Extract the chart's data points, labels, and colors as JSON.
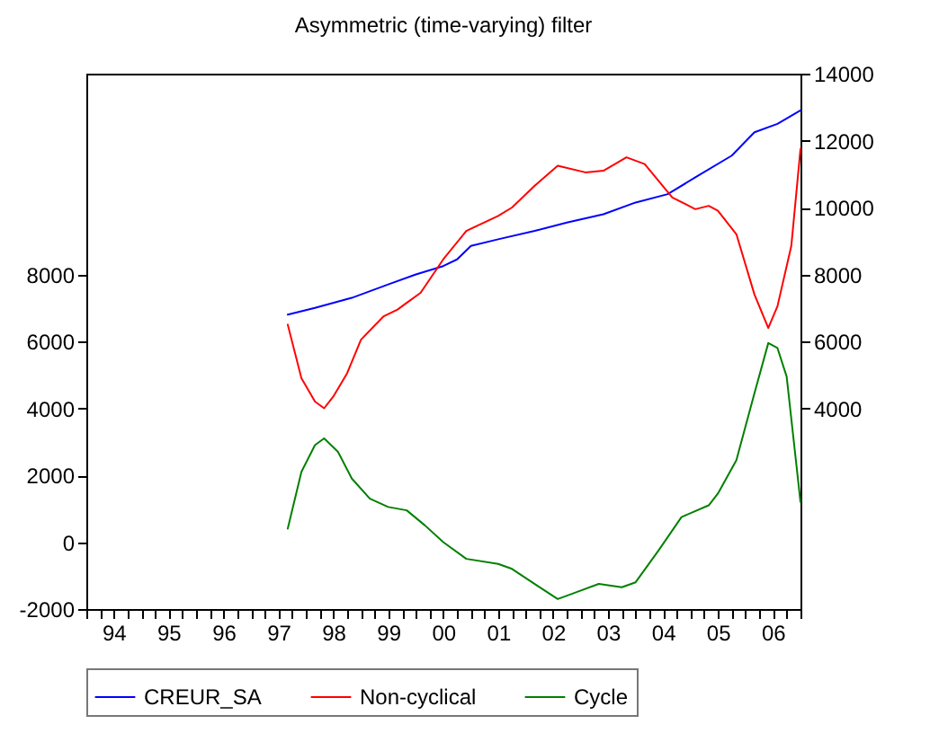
{
  "chart_data": {
    "type": "line",
    "title": "Asymmetric (time-varying) filter",
    "series": [
      {
        "name": "CREUR_SA",
        "color": "#0000ff",
        "axis": "y2",
        "x": [
          "1997-09",
          "1998-03",
          "1998-11",
          "1999-07",
          "2000-01",
          "2000-07",
          "2000-10",
          "2001-01",
          "2001-07",
          "2002-03",
          "2002-10",
          "2003-06",
          "2004-01",
          "2004-08",
          "2005-02",
          "2005-10",
          "2006-03",
          "2006-08",
          "2007-01"
        ],
        "values": [
          6800,
          7000,
          7300,
          7700,
          8000,
          8250,
          8450,
          8850,
          9050,
          9300,
          9550,
          9800,
          10150,
          10400,
          10900,
          11550,
          12250,
          12500,
          12900
        ]
      },
      {
        "name": "Non-cyclical",
        "color": "#ff0000",
        "axis": "y2",
        "x": [
          "1997-09",
          "1997-12",
          "1998-03",
          "1998-05",
          "1998-07",
          "1998-10",
          "1999-01",
          "1999-06",
          "1999-09",
          "1999-11",
          "2000-02",
          "2000-07",
          "2000-12",
          "2001-07",
          "2001-10",
          "2002-03",
          "2002-08",
          "2003-02",
          "2003-06",
          "2003-11",
          "2004-03",
          "2004-09",
          "2005-02",
          "2005-05",
          "2005-07",
          "2005-11",
          "2006-03",
          "2006-06",
          "2006-08",
          "2006-11",
          "2007-01"
        ],
        "values": [
          6500,
          4900,
          4200,
          4000,
          4350,
          5050,
          6050,
          6750,
          6950,
          7150,
          7450,
          8450,
          9300,
          9750,
          10000,
          10650,
          11250,
          11050,
          11100,
          11500,
          11300,
          10300,
          9950,
          10050,
          9900,
          9200,
          7400,
          6400,
          7050,
          8850,
          11750
        ]
      },
      {
        "name": "Cycle",
        "color": "#008000",
        "x": [
          "1997-09",
          "1997-12",
          "1998-03",
          "1998-05",
          "1998-08",
          "1998-11",
          "1999-03",
          "1999-07",
          "1999-11",
          "2000-03",
          "2000-07",
          "2000-12",
          "2001-07",
          "2001-10",
          "2002-03",
          "2002-08",
          "2002-12",
          "2003-05",
          "2003-10",
          "2004-01",
          "2004-06",
          "2004-11",
          "2005-05",
          "2005-07",
          "2005-11",
          "2006-03",
          "2006-06",
          "2006-08",
          "2006-10",
          "2007-01"
        ],
        "values": [
          400,
          2100,
          2900,
          3100,
          2700,
          1900,
          1300,
          1050,
          950,
          500,
          0,
          -500,
          -650,
          -800,
          -1250,
          -1700,
          -1500,
          -1250,
          -1350,
          -1200,
          -250,
          750,
          1100,
          1450,
          2450,
          4450,
          5950,
          5800,
          4950,
          1200
        ]
      }
    ],
    "xlim": [
      "1994-01",
      "2007-01"
    ],
    "xticks": [
      {
        "value": "1994-01",
        "label": null
      },
      {
        "value": "1994-04",
        "label": null
      },
      {
        "value": "1994-07",
        "label": "94"
      },
      {
        "value": "1994-10",
        "label": null
      },
      {
        "value": "1995-01",
        "label": null
      },
      {
        "value": "1995-04",
        "label": null
      },
      {
        "value": "1995-07",
        "label": "95"
      },
      {
        "value": "1995-10",
        "label": null
      },
      {
        "value": "1996-01",
        "label": null
      },
      {
        "value": "1996-04",
        "label": null
      },
      {
        "value": "1996-07",
        "label": "96"
      },
      {
        "value": "1996-10",
        "label": null
      },
      {
        "value": "1997-01",
        "label": null
      },
      {
        "value": "1997-04",
        "label": null
      },
      {
        "value": "1997-07",
        "label": "97"
      },
      {
        "value": "1997-10",
        "label": null
      },
      {
        "value": "1998-01",
        "label": null
      },
      {
        "value": "1998-04",
        "label": null
      },
      {
        "value": "1998-07",
        "label": "98"
      },
      {
        "value": "1998-10",
        "label": null
      },
      {
        "value": "1999-01",
        "label": null
      },
      {
        "value": "1999-04",
        "label": null
      },
      {
        "value": "1999-07",
        "label": "99"
      },
      {
        "value": "1999-10",
        "label": null
      },
      {
        "value": "2000-01",
        "label": null
      },
      {
        "value": "2000-04",
        "label": null
      },
      {
        "value": "2000-07",
        "label": "00"
      },
      {
        "value": "2000-10",
        "label": null
      },
      {
        "value": "2001-01",
        "label": null
      },
      {
        "value": "2001-04",
        "label": null
      },
      {
        "value": "2001-07",
        "label": "01"
      },
      {
        "value": "2001-10",
        "label": null
      },
      {
        "value": "2002-01",
        "label": null
      },
      {
        "value": "2002-04",
        "label": null
      },
      {
        "value": "2002-07",
        "label": "02"
      },
      {
        "value": "2002-10",
        "label": null
      },
      {
        "value": "2003-01",
        "label": null
      },
      {
        "value": "2003-04",
        "label": null
      },
      {
        "value": "2003-07",
        "label": "03"
      },
      {
        "value": "2003-10",
        "label": null
      },
      {
        "value": "2004-01",
        "label": null
      },
      {
        "value": "2004-04",
        "label": null
      },
      {
        "value": "2004-07",
        "label": "04"
      },
      {
        "value": "2004-10",
        "label": null
      },
      {
        "value": "2005-01",
        "label": null
      },
      {
        "value": "2005-04",
        "label": null
      },
      {
        "value": "2005-07",
        "label": "05"
      },
      {
        "value": "2005-10",
        "label": null
      },
      {
        "value": "2006-01",
        "label": null
      },
      {
        "value": "2006-04",
        "label": null
      },
      {
        "value": "2006-07",
        "label": "06"
      },
      {
        "value": "2006-10",
        "label": null
      },
      {
        "value": "2007-01",
        "label": null
      }
    ],
    "ylim": [
      -2000,
      14000
    ],
    "yticks": [
      -2000,
      0,
      2000,
      4000,
      6000,
      8000
    ],
    "y2lim": [
      -2000,
      14000
    ],
    "y2ticks": [
      4000,
      6000,
      8000,
      10000,
      12000,
      14000
    ],
    "legend": "bottom",
    "grid": false,
    "marker": "none",
    "line_style": "solid"
  }
}
